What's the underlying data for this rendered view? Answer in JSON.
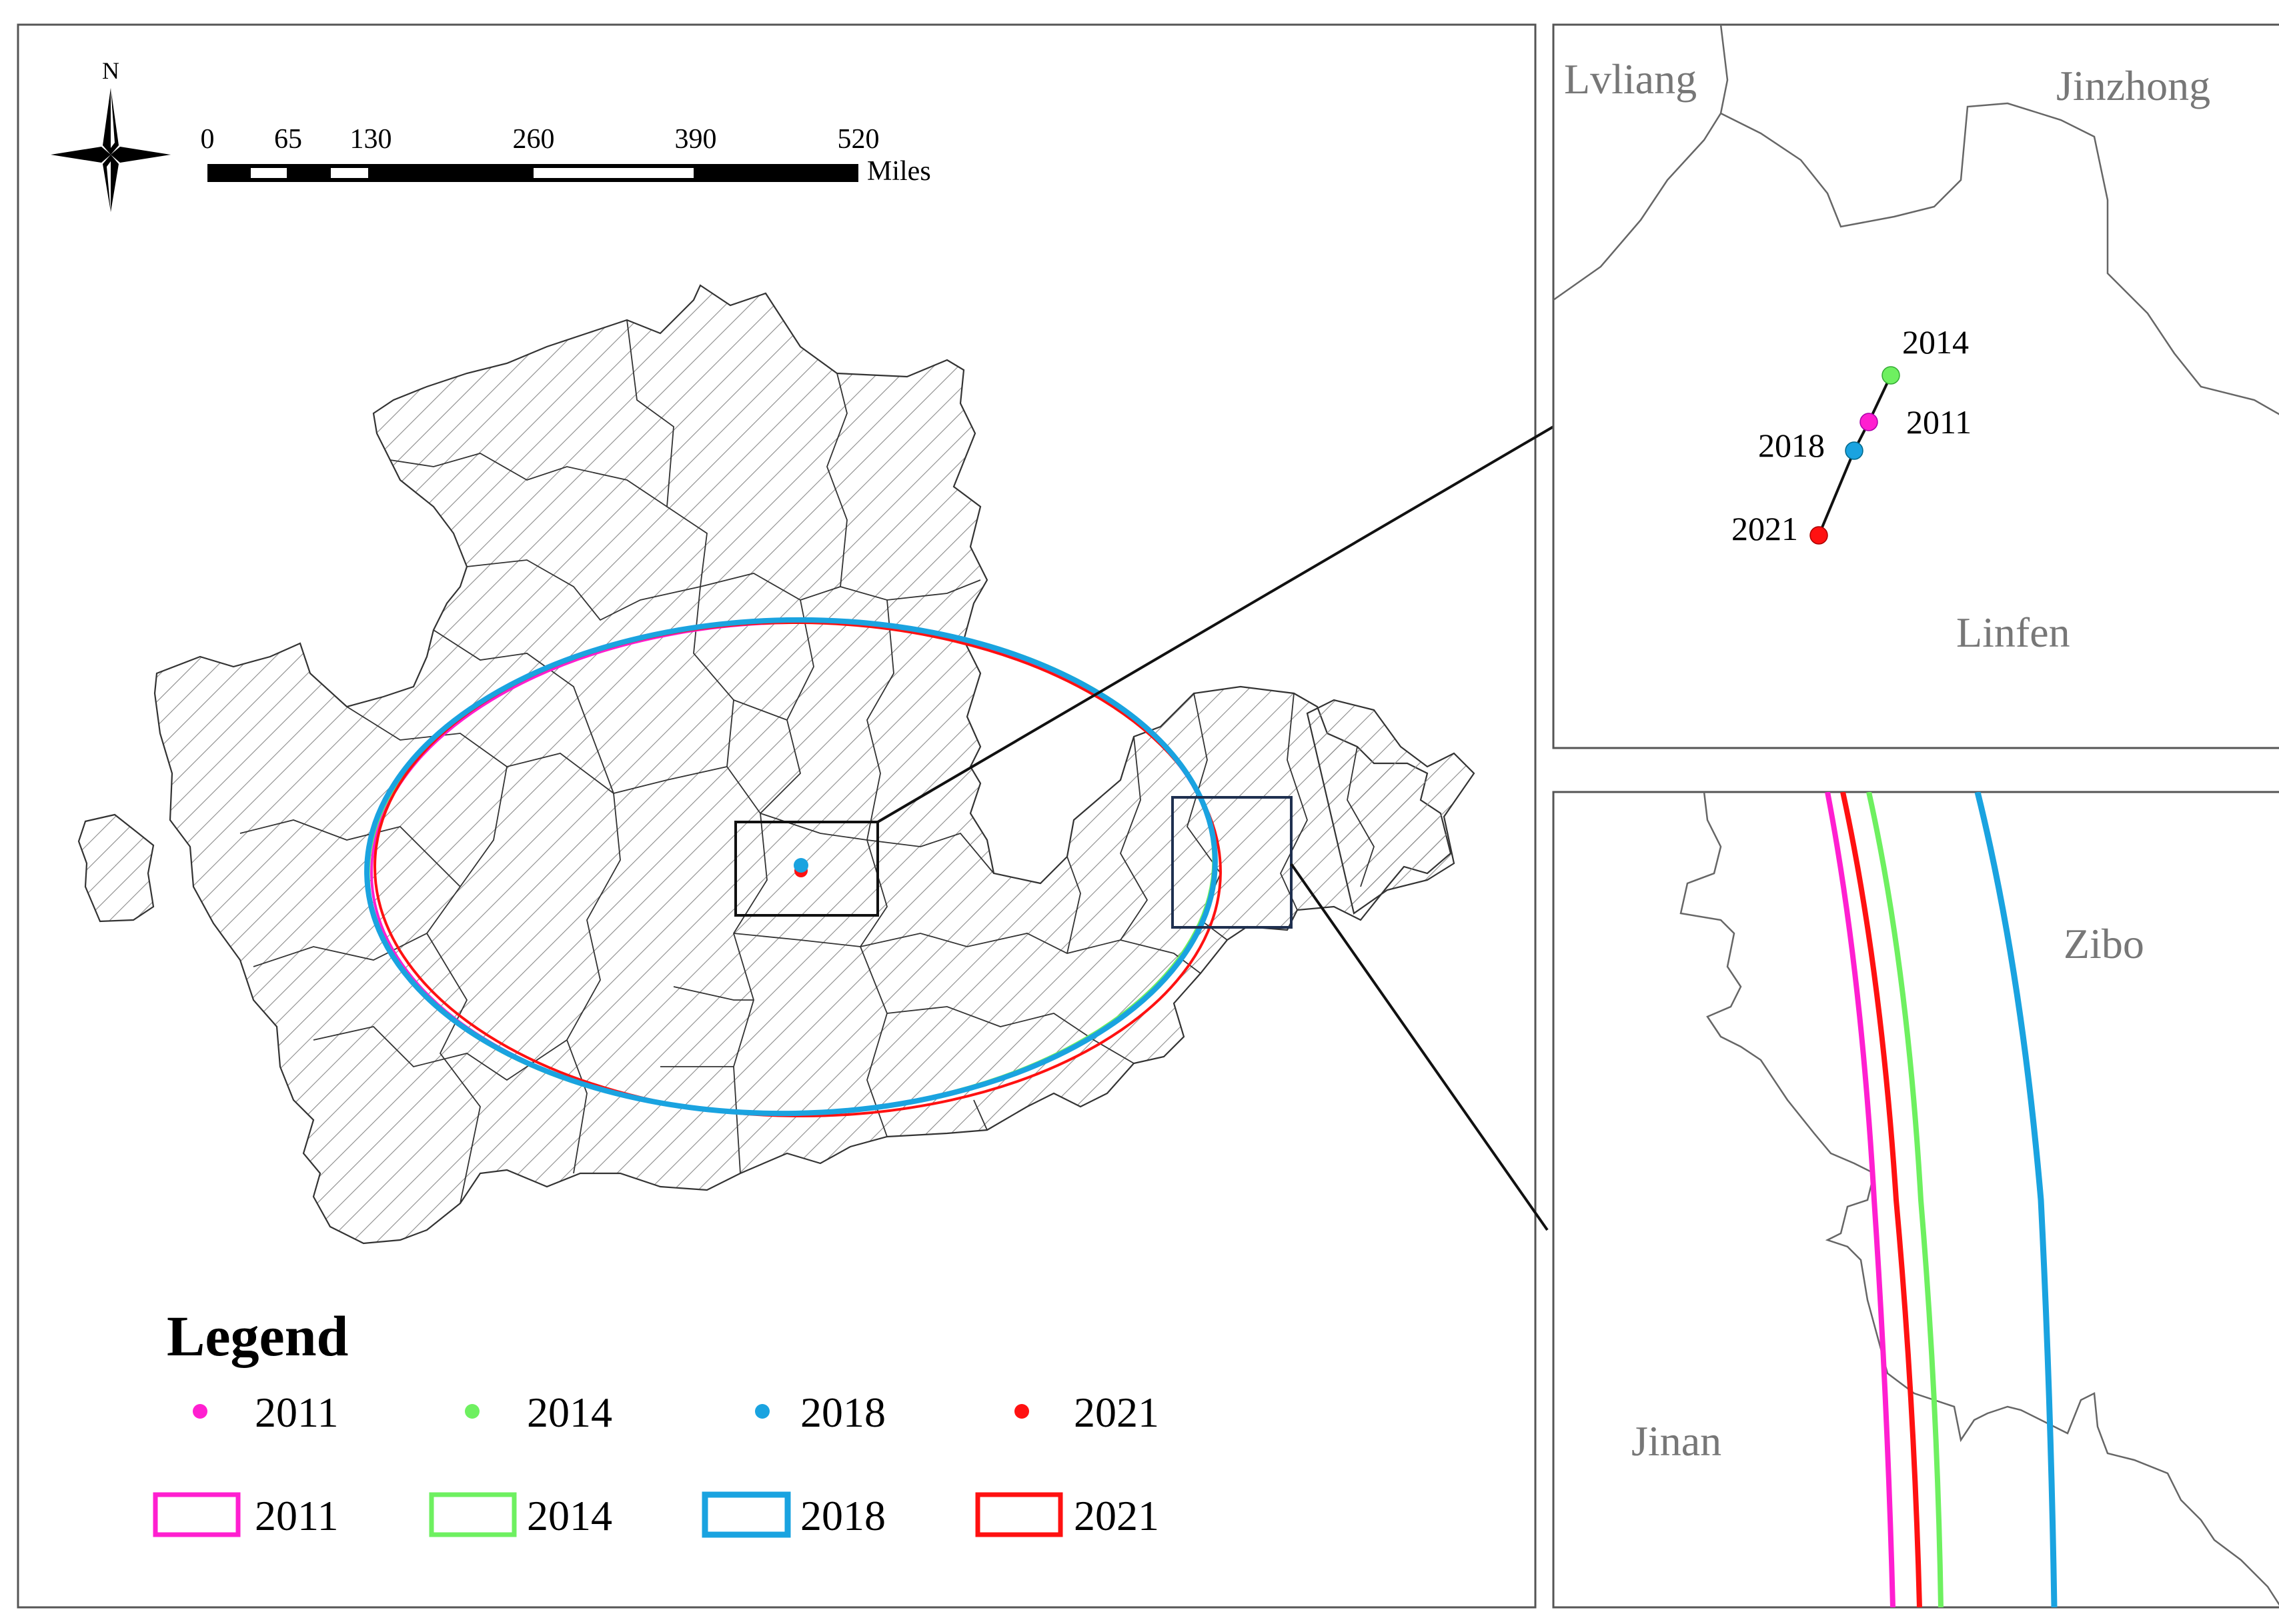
{
  "north_arrow": {
    "label": "N"
  },
  "scale_bar": {
    "ticks": [
      "0",
      "65",
      "130",
      "260",
      "390",
      "520"
    ],
    "unit": "Miles"
  },
  "legend": {
    "title": "Legend",
    "points": [
      {
        "label": "2011",
        "color": "#ff1fd0"
      },
      {
        "label": "2014",
        "color": "#6ef060"
      },
      {
        "label": "2018",
        "color": "#1aa3e0"
      },
      {
        "label": "2021",
        "color": "#ff1111"
      }
    ],
    "ellipses": [
      {
        "label": "2011",
        "color": "#ff1fd0"
      },
      {
        "label": "2014",
        "color": "#6ef060"
      },
      {
        "label": "2018",
        "color": "#1aa3e0"
      },
      {
        "label": "2021",
        "color": "#ff1111"
      }
    ]
  },
  "inset_top": {
    "regions": [
      "Lvliang",
      "Jinzhong",
      "Linfen"
    ],
    "centroids": [
      {
        "label": "2014",
        "color": "#6ef060"
      },
      {
        "label": "2011",
        "color": "#ff1fd0"
      },
      {
        "label": "2018",
        "color": "#1aa3e0"
      },
      {
        "label": "2021",
        "color": "#ff1111"
      }
    ]
  },
  "inset_bottom": {
    "regions": [
      "Zibo",
      "Jinan"
    ]
  }
}
